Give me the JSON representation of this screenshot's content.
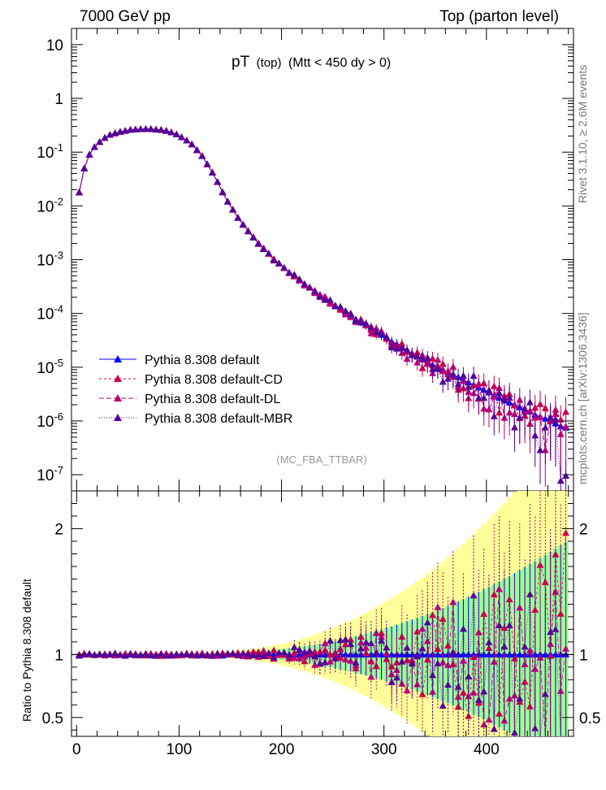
{
  "header": {
    "left": "7000 GeV pp",
    "right": "Top (parton level)"
  },
  "plot_title": {
    "main": "pT",
    "sub": "(top)",
    "cut": "(Mtt < 450 dy > 0)"
  },
  "analysis_tag": "(MC_FBA_TTBAR)",
  "side_labels": {
    "rivet": "Rivet 3.1.10, ≥ 2.6M events",
    "source": "mcplots.cern.ch [arXiv:1306.3436]"
  },
  "ratio_ylabel": "Ratio to Pythia 8.308 default",
  "legend": [
    {
      "label": "Pythia 8.308 default",
      "color": "#0000ff",
      "dash": "none"
    },
    {
      "label": "Pythia 8.308 default-CD",
      "color": "#cc0044",
      "dash": "3,3"
    },
    {
      "label": "Pythia 8.308 default-DL",
      "color": "#bb0077",
      "dash": "6,3"
    },
    {
      "label": "Pythia 8.308 default-MBR",
      "color": "#550099",
      "dash": "1,2"
    }
  ],
  "chart_data": {
    "type": "line",
    "xlim": [
      -5,
      485
    ],
    "main_ylim": [
      5e-08,
      20
    ],
    "main_yscale": "log",
    "main_yticks": [
      "10",
      "1",
      "10^-1",
      "10^-2",
      "10^-3",
      "10^-4",
      "10^-5",
      "10^-6",
      "10^-7"
    ],
    "ratio_ylim": [
      0.35,
      2.3
    ],
    "ratio_yticks": [
      "0.5",
      "1",
      "2"
    ],
    "xticks": [
      "0",
      "100",
      "200",
      "300",
      "400"
    ],
    "bin_width": 5,
    "reference": {
      "name": "Pythia 8.308 default",
      "x": [
        2.5,
        7.5,
        12.5,
        17.5,
        22.5,
        27.5,
        32.5,
        37.5,
        42.5,
        47.5,
        52.5,
        57.5,
        62.5,
        67.5,
        72.5,
        77.5,
        82.5,
        87.5,
        92.5,
        97.5,
        102.5,
        107.5,
        112.5,
        117.5,
        122.5,
        127.5,
        132.5,
        137.5,
        142.5,
        147.5,
        152.5,
        157.5,
        162.5,
        167.5,
        172.5,
        177.5,
        182.5,
        187.5,
        192.5,
        197.5,
        202.5,
        207.5,
        212.5,
        217.5,
        222.5,
        227.5,
        232.5,
        237.5,
        242.5,
        247.5,
        252.5,
        257.5,
        262.5,
        267.5,
        272.5,
        277.5,
        282.5,
        287.5,
        292.5,
        297.5,
        302.5,
        307.5,
        312.5,
        317.5,
        322.5,
        327.5,
        332.5,
        337.5,
        342.5,
        347.5,
        352.5,
        357.5,
        362.5,
        367.5,
        372.5,
        377.5,
        382.5,
        387.5,
        392.5,
        397.5,
        402.5,
        407.5,
        412.5,
        417.5,
        422.5,
        427.5,
        432.5,
        437.5,
        442.5,
        447.5,
        452.5,
        457.5,
        462.5,
        467.5,
        472.5,
        477.5
      ],
      "y": [
        0.018,
        0.05,
        0.09,
        0.125,
        0.155,
        0.185,
        0.21,
        0.225,
        0.24,
        0.25,
        0.26,
        0.265,
        0.27,
        0.27,
        0.27,
        0.265,
        0.26,
        0.25,
        0.235,
        0.215,
        0.19,
        0.165,
        0.14,
        0.11,
        0.085,
        0.06,
        0.042,
        0.028,
        0.018,
        0.012,
        0.0085,
        0.006,
        0.0045,
        0.0034,
        0.0026,
        0.002,
        0.0016,
        0.0013,
        0.001,
        0.00085,
        0.0007,
        0.00058,
        0.0005,
        0.00042,
        0.00035,
        0.0003,
        0.00026,
        0.00022,
        0.00019,
        0.00016,
        0.00014,
        0.00012,
        0.0001,
        9e-05,
        7.8e-05,
        6.8e-05,
        6e-05,
        5.2e-05,
        4.5e-05,
        4e-05,
        3.5e-05,
        3e-05,
        2.7e-05,
        2.4e-05,
        2e-05,
        1.8e-05,
        1.6e-05,
        1.4e-05,
        1.2e-05,
        1.1e-05,
        1e-05,
        9e-06,
        8e-06,
        7.2e-06,
        6.5e-06,
        5.8e-06,
        5.2e-06,
        4.7e-06,
        4.2e-06,
        3.8e-06,
        3.4e-06,
        3e-06,
        2.7e-06,
        2.4e-06,
        2.2e-06,
        2e-06,
        1.8e-06,
        1.6e-06,
        1.5e-06,
        1.3e-06,
        1.2e-06,
        1.1e-06,
        1e-06,
        9e-07,
        8e-07,
        7.5e-07
      ]
    },
    "series": [
      {
        "name": "Pythia 8.308 default",
        "ratio_seed": 0
      },
      {
        "name": "Pythia 8.308 default-CD",
        "ratio_seed": 1
      },
      {
        "name": "Pythia 8.308 default-DL",
        "ratio_seed": 2
      },
      {
        "name": "Pythia 8.308 default-MBR",
        "ratio_seed": 3
      }
    ]
  }
}
